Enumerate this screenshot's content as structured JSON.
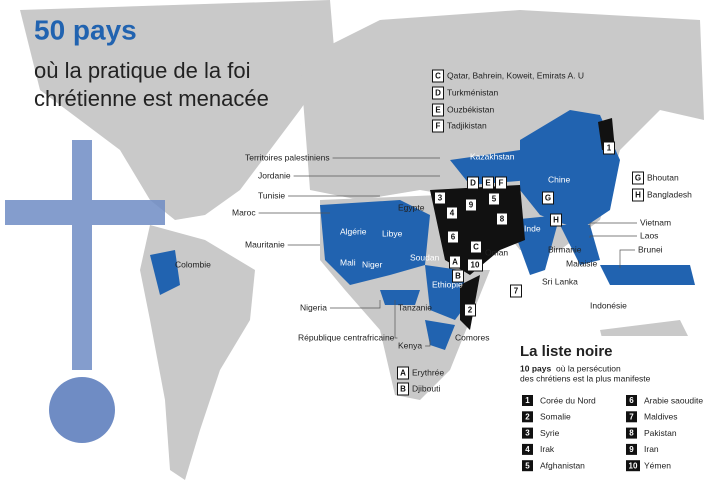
{
  "header": {
    "title": "50 pays",
    "subtitle_lines": [
      "où la pratique de la foi",
      "chrétienne est menacée"
    ]
  },
  "key_letters": [
    {
      "letter": "C",
      "name": "Qatar, Bahrein, Koweit, Emirats A. U"
    },
    {
      "letter": "D",
      "name": "Turkménistan"
    },
    {
      "letter": "E",
      "name": "Ouzbékistan"
    },
    {
      "letter": "F",
      "name": "Tadjikistan"
    },
    {
      "letter": "G",
      "name": "Bhoutan"
    },
    {
      "letter": "H",
      "name": "Bangladesh"
    },
    {
      "letter": "A",
      "name": "Erythrée"
    },
    {
      "letter": "B",
      "name": "Djibouti"
    }
  ],
  "country_labels": [
    "Territoires palestiniens",
    "Jordanie",
    "Tunisie",
    "Maroc",
    "Mauritanie",
    "Algérie",
    "Libye",
    "Egypte",
    "Mali",
    "Niger",
    "Soudan",
    "Ethiopie",
    "Nigeria",
    "République centrafricaine",
    "Tanzanie",
    "Kenya",
    "Comores",
    "Oman",
    "Kazakhstan",
    "Chine",
    "Inde",
    "Vietnam",
    "Laos",
    "Brunei",
    "Birmanie",
    "Malaisie",
    "Sri Lanka",
    "Indonésie",
    "Colombie"
  ],
  "map_markers": [
    "1",
    "2",
    "3",
    "4",
    "5",
    "6",
    "7",
    "8",
    "9",
    "10",
    "A",
    "B",
    "C",
    "D",
    "E",
    "F",
    "G",
    "H"
  ],
  "black_list": {
    "title": "La liste noire",
    "lead": "10 pays",
    "description_lines": [
      "où la persécution",
      "des chrétiens est la plus manifeste"
    ],
    "items": [
      {
        "rank": "1",
        "name": "Corée du Nord"
      },
      {
        "rank": "2",
        "name": "Somalie"
      },
      {
        "rank": "3",
        "name": "Syrie"
      },
      {
        "rank": "4",
        "name": "Irak"
      },
      {
        "rank": "5",
        "name": "Afghanistan"
      },
      {
        "rank": "6",
        "name": "Arabie saoudite"
      },
      {
        "rank": "7",
        "name": "Maldives"
      },
      {
        "rank": "8",
        "name": "Pakistan"
      },
      {
        "rank": "9",
        "name": "Iran"
      },
      {
        "rank": "10",
        "name": "Yémen"
      }
    ]
  }
}
